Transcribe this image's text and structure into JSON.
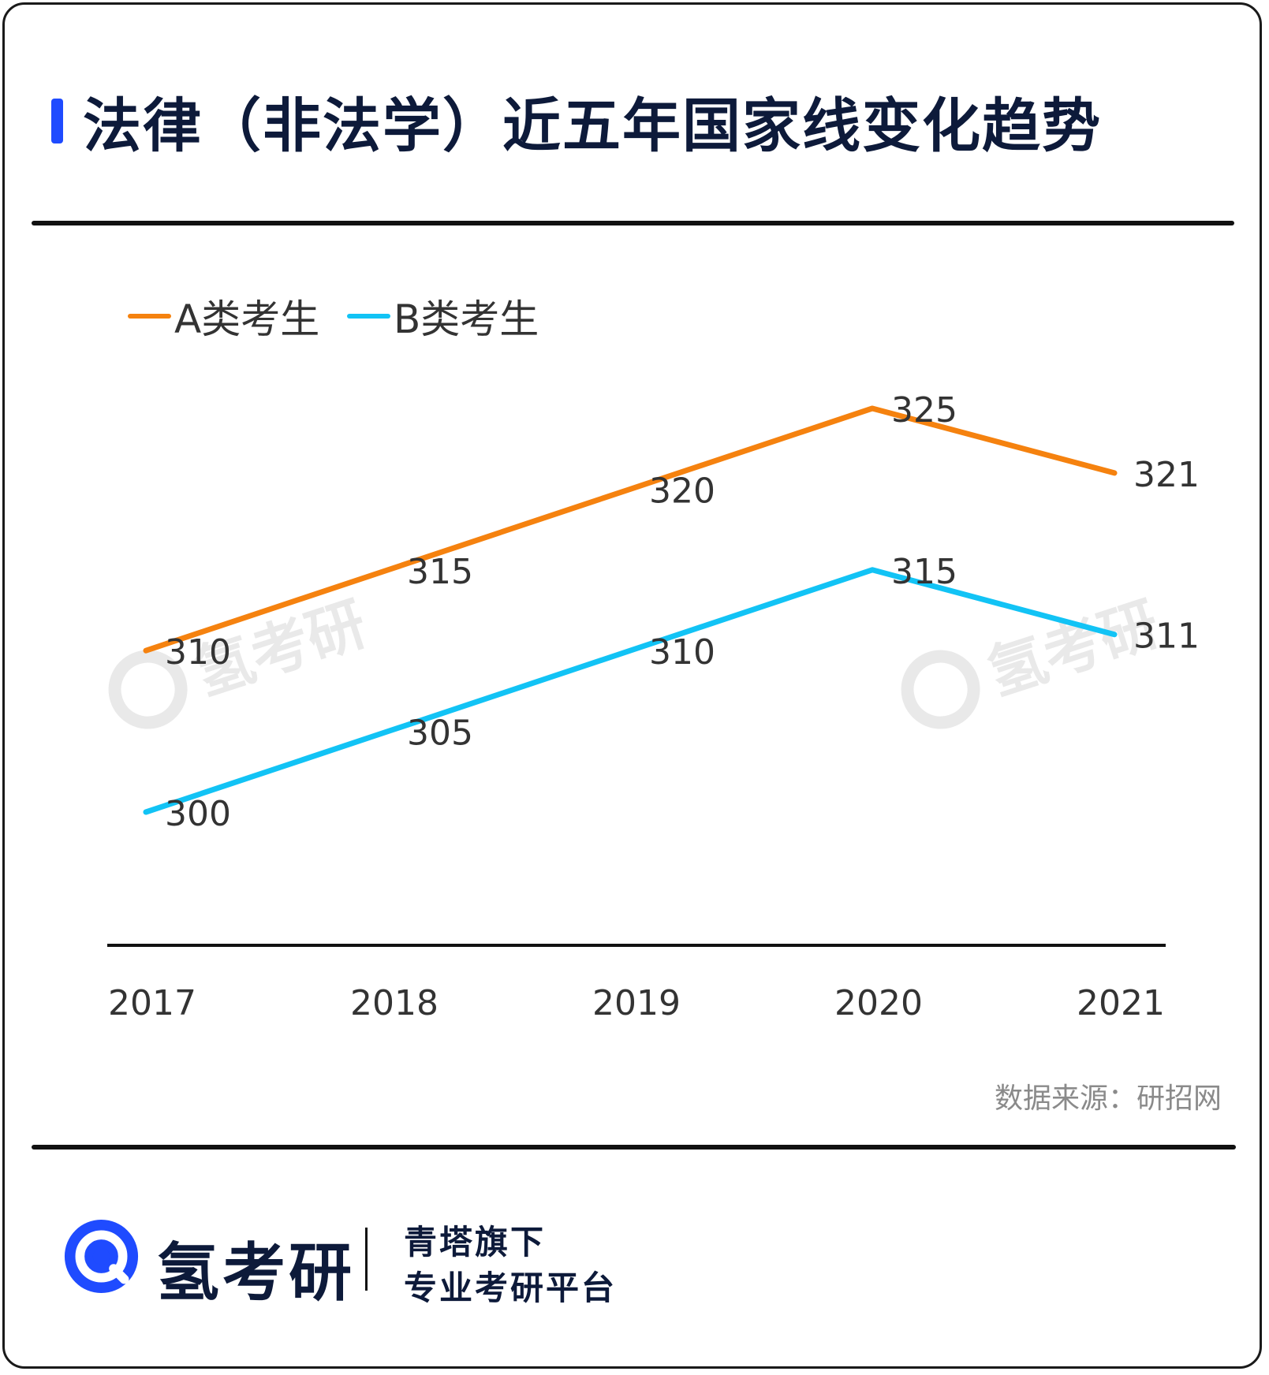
{
  "title": "法律（非法学）近五年国家线变化趋势",
  "source": "数据来源：研招网",
  "watermark": "氢考研",
  "footer": {
    "brand": "氢考研",
    "tagline_1": "青塔旗下",
    "tagline_2": "专业考研平台"
  },
  "colors": {
    "accent": "#1f4bff",
    "series_a": "#f5820f",
    "series_b": "#12c3f5",
    "text": "#333333"
  },
  "chart_data": {
    "type": "line",
    "title": "法律（非法学）近五年国家线变化趋势",
    "categories": [
      "2017",
      "2018",
      "2019",
      "2020",
      "2021"
    ],
    "series": [
      {
        "name": "A类考生",
        "values": [
          310,
          315,
          320,
          325,
          321
        ]
      },
      {
        "name": "B类考生",
        "values": [
          300,
          305,
          310,
          315,
          311
        ]
      }
    ],
    "xlabel": "",
    "ylabel": "",
    "ylim": [
      300,
      325
    ],
    "legend": "top-left",
    "grid": false
  }
}
